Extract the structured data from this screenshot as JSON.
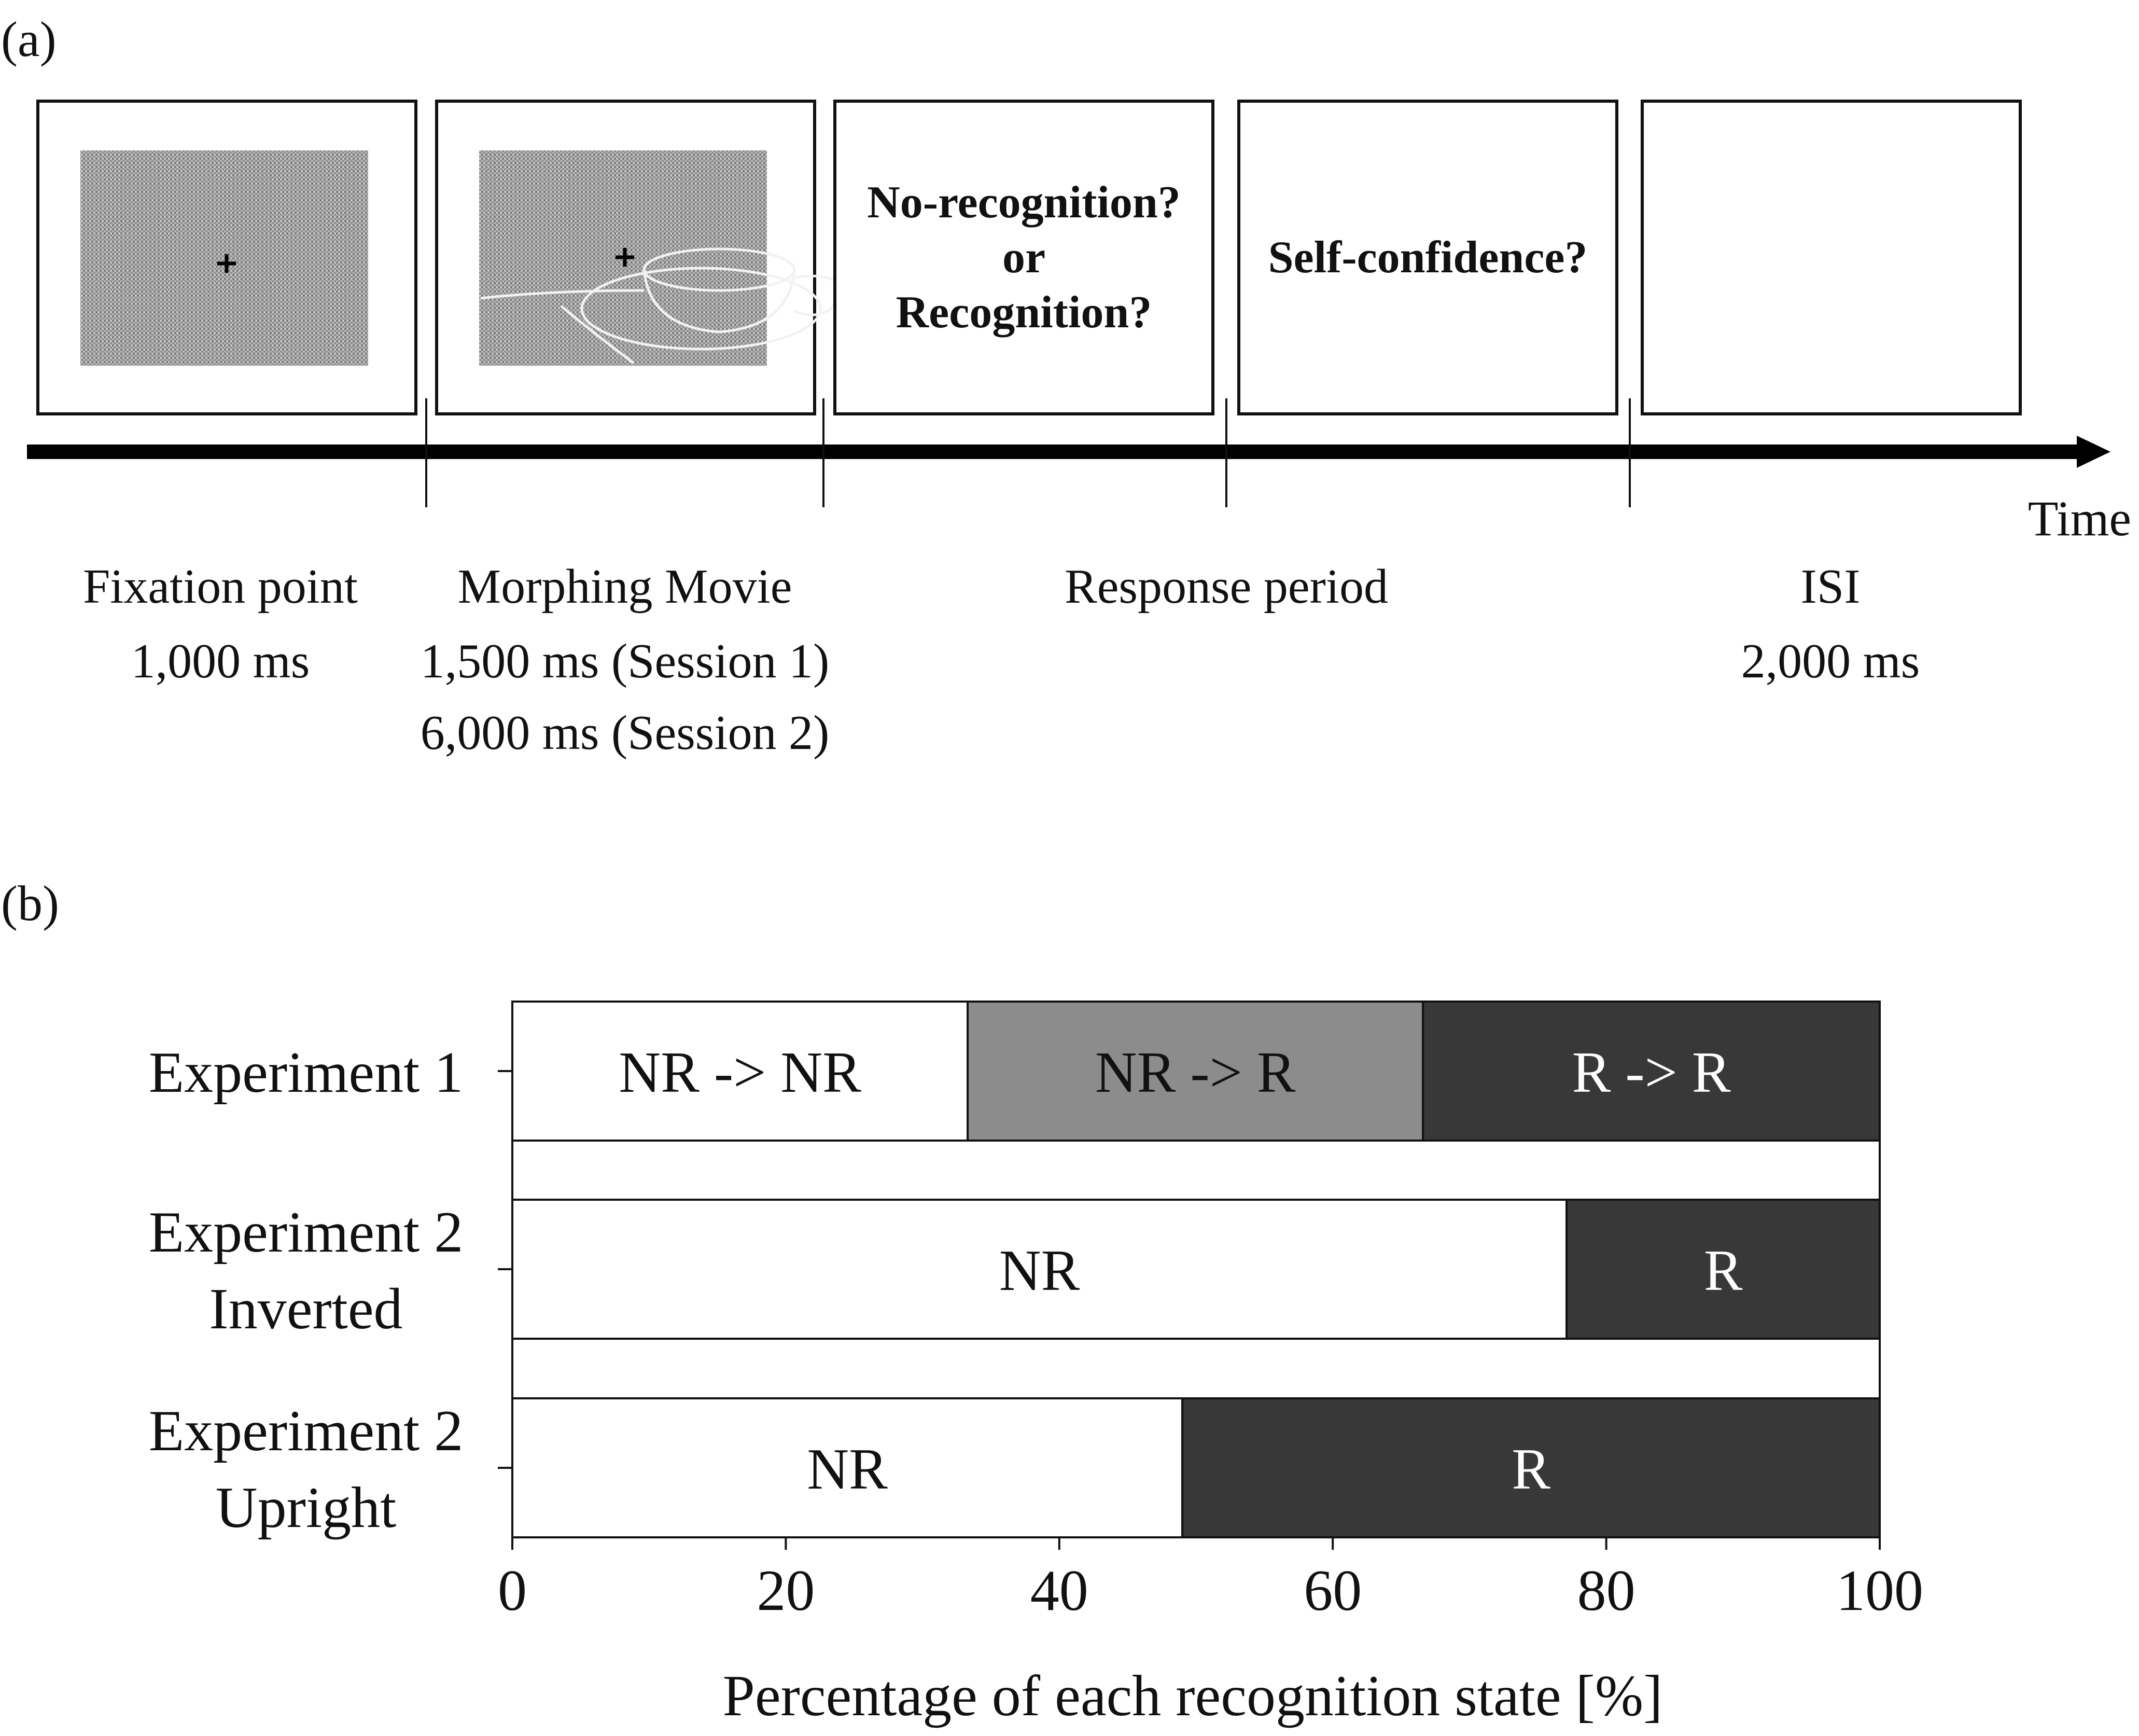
{
  "panel_a": {
    "label": "(a)",
    "screens": [
      {
        "name": "fixation-screen",
        "kind": "fixation",
        "lines": []
      },
      {
        "name": "morphing-screen",
        "kind": "morph",
        "lines": []
      },
      {
        "name": "recognition-question-screen",
        "kind": "text",
        "lines": [
          "No-recognition?",
          "or",
          "Recognition?"
        ]
      },
      {
        "name": "confidence-question-screen",
        "kind": "text",
        "lines": [
          "Self-confidence?"
        ]
      },
      {
        "name": "isi-screen",
        "kind": "blank",
        "lines": []
      }
    ],
    "time_label": "Time",
    "phases": [
      {
        "name": "fixation",
        "lines": [
          "Fixation point",
          "1,000 ms"
        ]
      },
      {
        "name": "morphing",
        "lines": [
          "Morphing Movie",
          "1,500 ms (Session 1)",
          "6,000 ms (Session 2)"
        ]
      },
      {
        "name": "response",
        "lines": [
          "Response period"
        ]
      },
      {
        "name": "isi",
        "lines": [
          "ISI",
          "2,000 ms"
        ]
      }
    ]
  },
  "panel_b": {
    "label": "(b)"
  },
  "chart_data": {
    "type": "bar",
    "orientation": "horizontal",
    "stacked": true,
    "categories": [
      [
        "Experiment 1"
      ],
      [
        "Experiment 2",
        "Inverted"
      ],
      [
        "Experiment 2",
        "Upright"
      ]
    ],
    "segments": [
      [
        {
          "label": "NR -> NR",
          "value": 33.3,
          "color": "#ffffff",
          "text_color": "#111111"
        },
        {
          "label": "NR -> R",
          "value": 33.3,
          "color": "#8c8c8c",
          "text_color": "#111111"
        },
        {
          "label": "R -> R",
          "value": 33.4,
          "color": "#383838",
          "text_color": "#ffffff"
        }
      ],
      [
        {
          "label": "NR",
          "value": 77.1,
          "color": "#ffffff",
          "text_color": "#111111"
        },
        {
          "label": "R",
          "value": 22.9,
          "color": "#383838",
          "text_color": "#ffffff"
        }
      ],
      [
        {
          "label": "NR",
          "value": 49,
          "color": "#ffffff",
          "text_color": "#111111"
        },
        {
          "label": "R",
          "value": 51,
          "color": "#383838",
          "text_color": "#ffffff"
        }
      ]
    ],
    "xlim": [
      0,
      100
    ],
    "xticks": [
      0,
      20,
      40,
      60,
      80,
      100
    ],
    "xlabel": "Percentage of each recognition state [%]",
    "title": "",
    "grid": false
  }
}
